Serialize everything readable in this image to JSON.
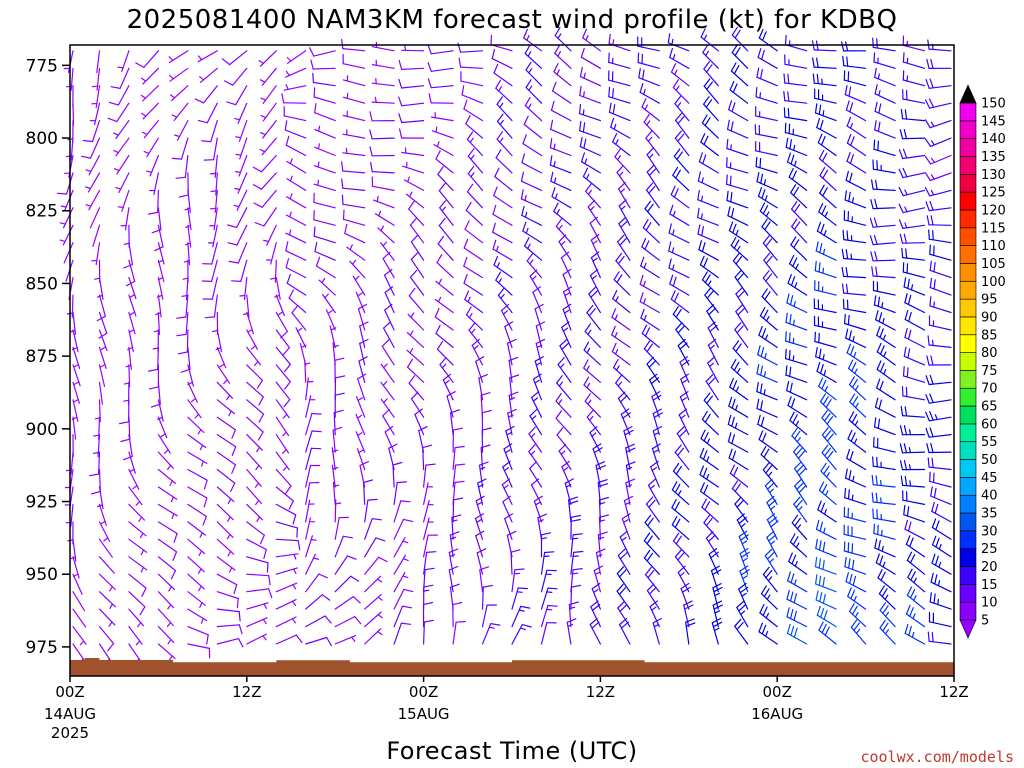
{
  "chart_data": {
    "type": "wind-barb-time-height",
    "title": "2025081400 NAM3KM forecast wind profile (kt) for KDBQ",
    "xlabel": "Forecast Time (UTC)",
    "ylabel": "",
    "x_range_hours": [
      0,
      60
    ],
    "y_range_hpa": [
      768,
      985
    ],
    "y_ticks": [
      775,
      800,
      825,
      850,
      875,
      900,
      925,
      950,
      975
    ],
    "x_ticks": [
      {
        "hour": 0,
        "label": "00Z",
        "date": "14AUG",
        "year": "2025"
      },
      {
        "hour": 12,
        "label": "12Z",
        "date": "",
        "year": ""
      },
      {
        "hour": 24,
        "label": "00Z",
        "date": "15AUG",
        "year": ""
      },
      {
        "hour": 36,
        "label": "12Z",
        "date": "",
        "year": ""
      },
      {
        "hour": 48,
        "label": "00Z",
        "date": "16AUG",
        "year": ""
      },
      {
        "hour": 60,
        "label": "12Z",
        "date": "",
        "year": ""
      }
    ],
    "colorbar": {
      "units": "kt",
      "levels": [
        5,
        10,
        15,
        20,
        25,
        30,
        35,
        40,
        45,
        50,
        55,
        60,
        65,
        70,
        75,
        80,
        85,
        90,
        95,
        100,
        105,
        110,
        115,
        120,
        125,
        130,
        135,
        140,
        145,
        150
      ],
      "colors": [
        "#8a00ff",
        "#6a00ff",
        "#3c00ff",
        "#0000e8",
        "#0030ff",
        "#0058f0",
        "#0080ff",
        "#00a6ff",
        "#00c8f0",
        "#00e0c0",
        "#00f09a",
        "#00e060",
        "#30f030",
        "#80f020",
        "#c8ff00",
        "#ffff00",
        "#ffe600",
        "#ffc800",
        "#ffaa00",
        "#ff9000",
        "#ff7000",
        "#ff5000",
        "#ff2a00",
        "#ff0000",
        "#f00040",
        "#f00070",
        "#f000a0",
        "#f000c8",
        "#f000ee",
        "#ff00ff"
      ],
      "low_color": "#9a00ff",
      "high_color": "#000000"
    },
    "terrain": {
      "color": "#a0522d",
      "top_hpa": [
        979.5,
        978.8,
        979.5,
        979.5,
        979.5,
        979.5,
        979.5,
        980.3,
        980.3,
        980.3,
        980.3,
        980.3,
        980.3,
        980.3,
        979.6,
        979.6,
        979.6,
        979.6,
        979.6,
        980.3,
        980.3,
        980.3,
        980.3,
        980.3,
        980.3,
        980.3,
        980.3,
        980.3,
        980.3,
        980.3,
        979.6,
        979.6,
        979.6,
        979.6,
        979.6,
        979.6,
        979.6,
        979.6,
        979.6,
        980.3,
        980.3,
        980.3,
        980.3,
        980.3,
        980.3,
        980.3,
        980.3,
        980.3,
        980.3,
        980.3,
        980.3,
        980.3,
        980.3,
        980.3,
        980.3,
        980.3,
        980.3,
        980.3,
        980.3,
        980.3,
        980.3
      ]
    },
    "barbs": {
      "hour_step": 2,
      "hours": [
        0,
        2,
        4,
        6,
        8,
        10,
        12,
        14,
        16,
        18,
        20,
        22,
        24,
        26,
        28,
        30,
        32,
        34,
        36,
        38,
        40,
        42,
        44,
        46,
        48,
        50,
        52,
        54,
        56,
        58,
        60
      ],
      "levels_hpa": [
        770,
        776,
        782,
        788,
        794,
        800,
        806,
        812,
        818,
        824,
        830,
        836,
        842,
        848,
        854,
        860,
        866,
        872,
        878,
        884,
        890,
        896,
        902,
        908,
        914,
        920,
        926,
        932,
        938,
        944,
        950,
        956,
        962,
        968,
        974
      ],
      "keyframes": [
        {
          "hour": 0,
          "top": {
            "dir": 200,
            "spd": 5
          },
          "bottom": {
            "dir": 160,
            "spd": 4
          }
        },
        {
          "hour": 8,
          "top": {
            "dir": 220,
            "spd": 6
          },
          "bottom": {
            "dir": 100,
            "spd": 7
          }
        },
        {
          "hour": 16,
          "top": {
            "dir": 250,
            "spd": 7
          },
          "bottom": {
            "dir": 60,
            "spd": 8
          }
        },
        {
          "hour": 24,
          "top": {
            "dir": 270,
            "spd": 8
          },
          "bottom": {
            "dir": 20,
            "spd": 10
          }
        },
        {
          "hour": 30,
          "top": {
            "dir": 290,
            "spd": 12
          },
          "bottom": {
            "dir": 10,
            "spd": 14
          }
        },
        {
          "hour": 36,
          "top": {
            "dir": 300,
            "spd": 15
          },
          "bottom": {
            "dir": 350,
            "spd": 16
          }
        },
        {
          "hour": 44,
          "top": {
            "dir": 300,
            "spd": 18
          },
          "bottom": {
            "dir": 330,
            "spd": 22
          }
        },
        {
          "hour": 52,
          "top": {
            "dir": 290,
            "spd": 20
          },
          "bottom": {
            "dir": 310,
            "spd": 30
          }
        },
        {
          "hour": 60,
          "top": {
            "dir": 260,
            "spd": 16
          },
          "bottom": {
            "dir": 290,
            "spd": 22
          }
        }
      ]
    }
  },
  "credit": "coolwx.com/models"
}
